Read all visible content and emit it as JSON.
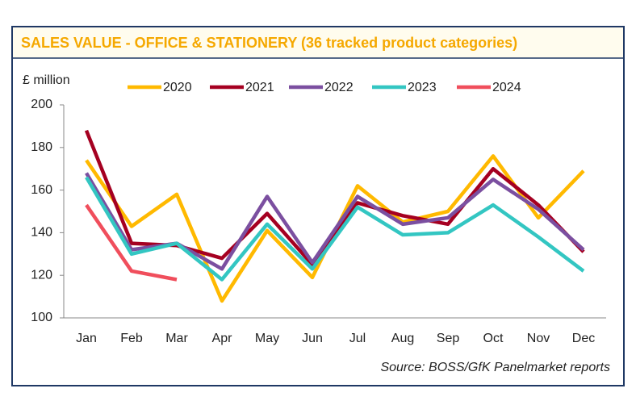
{
  "chart_data": {
    "type": "line",
    "title": "SALES VALUE - OFFICE & STATIONERY (36 tracked product categories)",
    "y_label": "£ million",
    "source": "Source: BOSS/GfK Panelmarket reports",
    "categories": [
      "Jan",
      "Feb",
      "Mar",
      "Apr",
      "May",
      "Jun",
      "Jul",
      "Aug",
      "Sep",
      "Oct",
      "Nov",
      "Dec"
    ],
    "series": [
      {
        "name": "2020",
        "color": "#FFB900",
        "values": [
          174,
          143,
          158,
          108,
          141,
          119,
          162,
          145,
          150,
          176,
          147,
          169
        ]
      },
      {
        "name": "2021",
        "color": "#A50021",
        "values": [
          188,
          135,
          134,
          128,
          149,
          125,
          154,
          148,
          144,
          170,
          153,
          131
        ]
      },
      {
        "name": "2022",
        "color": "#7B4FA0",
        "values": [
          168,
          132,
          135,
          123,
          157,
          126,
          157,
          144,
          147,
          165,
          151,
          132
        ]
      },
      {
        "name": "2023",
        "color": "#33C6C2",
        "values": [
          166,
          130,
          135,
          118,
          144,
          123,
          152,
          139,
          140,
          153,
          138,
          122
        ]
      },
      {
        "name": "2024",
        "color": "#F04E5C",
        "values": [
          153,
          122,
          118,
          null,
          null,
          null,
          null,
          null,
          null,
          null,
          null,
          null
        ]
      }
    ],
    "ylim": [
      100,
      200
    ],
    "yticks": [
      100,
      120,
      140,
      160,
      180,
      200
    ],
    "legend": "top"
  }
}
